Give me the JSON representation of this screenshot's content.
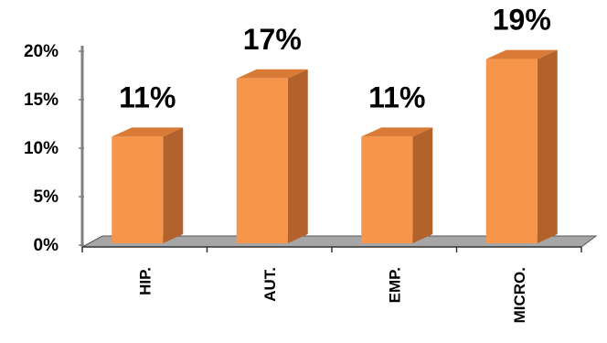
{
  "chart_data": {
    "type": "bar",
    "style": "3d-column",
    "categories": [
      "HIP.",
      "AUT.",
      "EMP.",
      "MICRO."
    ],
    "values": [
      11,
      17,
      11,
      19
    ],
    "data_labels": [
      "11%",
      "17%",
      "11%",
      "19%"
    ],
    "y_ticks": [
      {
        "value": 0,
        "label": "0%"
      },
      {
        "value": 5,
        "label": "5%"
      },
      {
        "value": 10,
        "label": "10%"
      },
      {
        "value": 15,
        "label": "15%"
      },
      {
        "value": 20,
        "label": "20%"
      }
    ],
    "ylim": [
      0,
      20
    ],
    "grid": false,
    "legend": "none",
    "title": "",
    "xlabel": "",
    "ylabel": ""
  },
  "colors": {
    "bar_front": "#F7964A",
    "bar_side": "#B4622B",
    "bar_top": "#D97B36",
    "floor": "#A6A6A6",
    "axis": "#808080",
    "text": "#000000"
  }
}
